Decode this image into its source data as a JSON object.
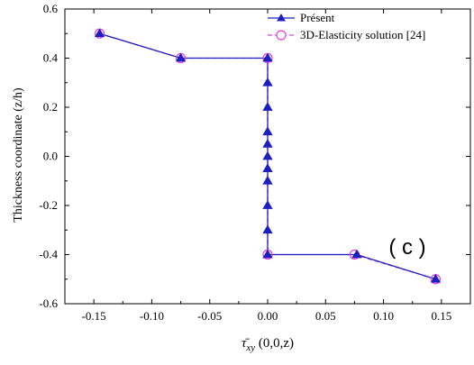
{
  "chart_data": {
    "type": "line",
    "xlabel": "τ̄xy (0,0,z)",
    "ylabel": "Thickness coordinate (z/h)",
    "xlim": [
      -0.175,
      0.175
    ],
    "ylim": [
      -0.6,
      0.6
    ],
    "xticks": [
      -0.15,
      -0.1,
      -0.05,
      0.0,
      0.05,
      0.1,
      0.15
    ],
    "xtick_labels": [
      "-0.15",
      "-0.10",
      "-0.05",
      "0.00",
      "0.05",
      "0.10",
      "0.15"
    ],
    "yticks": [
      -0.6,
      -0.4,
      -0.2,
      0.0,
      0.2,
      0.4,
      0.6
    ],
    "ytick_labels": [
      "-0.6",
      "-0.4",
      "-0.2",
      "0.0",
      "0.2",
      "0.4",
      "0.6"
    ],
    "grid": false,
    "legend_position": "top-right",
    "annotation": "( c )",
    "series": [
      {
        "name": "Présent",
        "color": "#1f1fbf",
        "marker": "filled-triangle",
        "line": "solid",
        "x": [
          -0.145,
          -0.075,
          0.0,
          0.0,
          0.0,
          0.0,
          0.0,
          0.0,
          0.0,
          0.0,
          0.0,
          0.0,
          0.0,
          0.077,
          0.145
        ],
        "y": [
          0.5,
          0.4,
          0.4,
          0.3,
          0.2,
          0.1,
          0.05,
          0.0,
          -0.05,
          -0.1,
          -0.2,
          -0.3,
          -0.4,
          -0.4,
          -0.5
        ]
      },
      {
        "name": "3D-Elasticity solution [24]",
        "color": "#e040e0",
        "marker": "open-circle",
        "line": "dashed",
        "x": [
          -0.145,
          -0.075,
          0.0,
          0.0,
          0.075,
          0.145
        ],
        "y": [
          0.5,
          0.4,
          0.4,
          -0.4,
          -0.4,
          -0.5
        ]
      }
    ]
  }
}
